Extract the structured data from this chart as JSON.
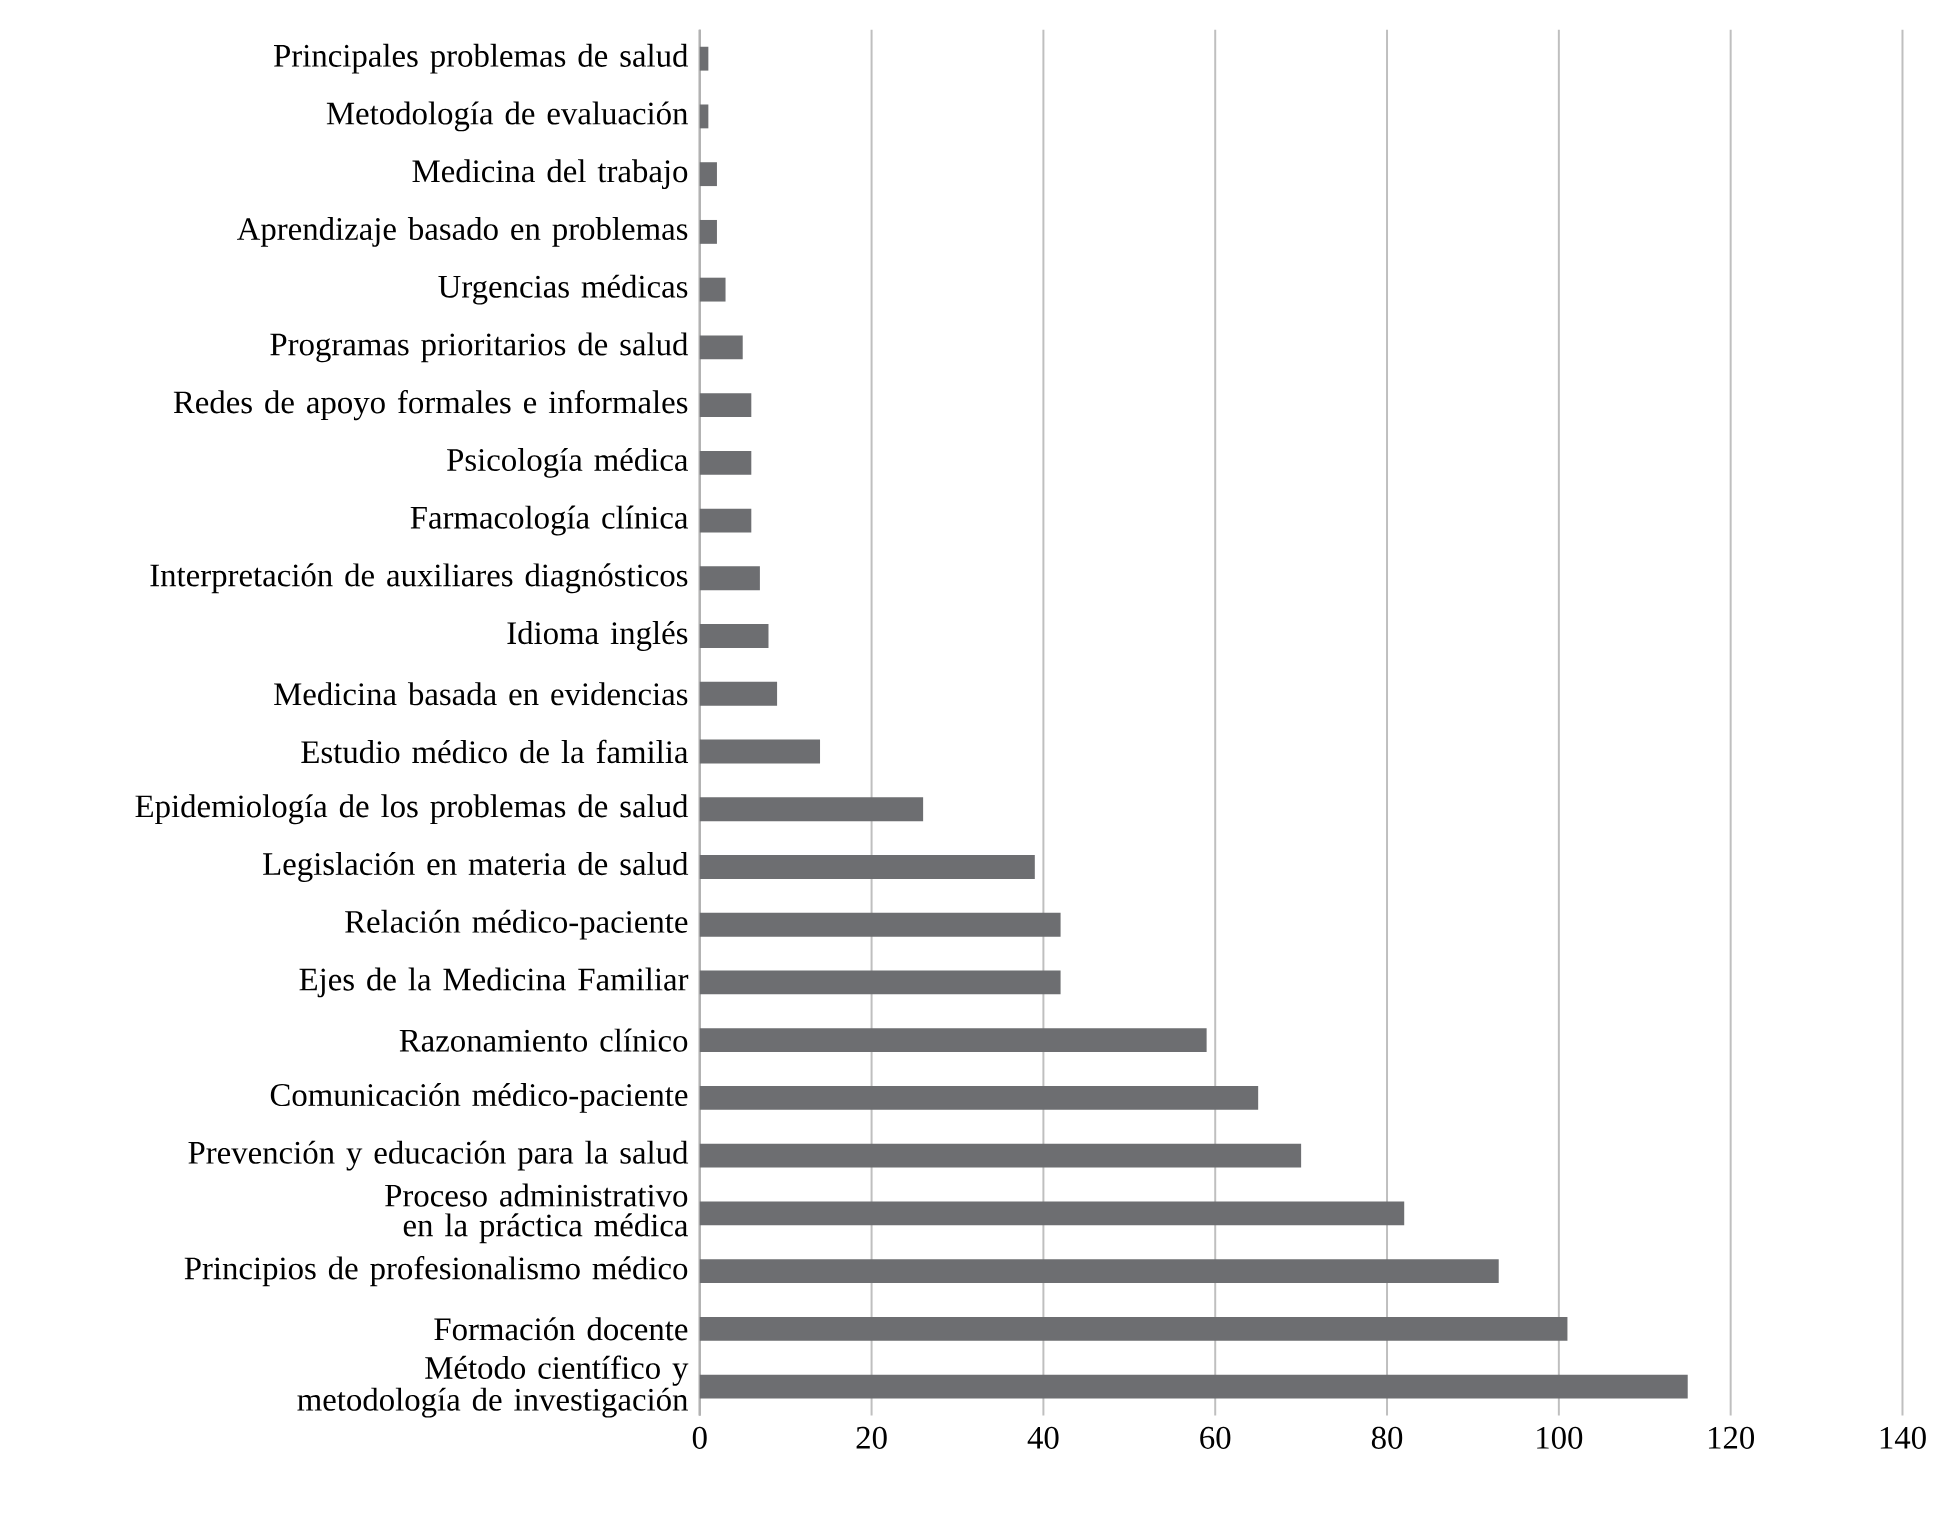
{
  "chart_data": {
    "type": "bar",
    "orientation": "horizontal",
    "categories": [
      "Principales problemas de salud",
      "Metodología de evaluación",
      "Medicina del trabajo",
      "Aprendizaje basado en problemas",
      "Urgencias médicas",
      "Programas prioritarios de salud",
      "Redes de apoyo formales e informales",
      "Psicología médica",
      "Farmacología clínica",
      "Interpretación de auxiliares diagnósticos",
      "Idioma inglés",
      "Medicina basada en evidencias",
      "Estudio médico de la familia",
      "Epidemiología de los problemas de salud",
      "Legislación en materia de salud",
      "Relación médico-paciente",
      "Ejes de la Medicina Familiar",
      "Razonamiento clínico",
      "Comunicación médico-paciente",
      "Prevención y educación para la salud",
      "Proceso administrativo en la práctica médica",
      "Principios de profesionalismo médico",
      "Formación docente",
      "Método científico y metodología de investigación"
    ],
    "values": [
      1,
      1,
      2,
      2,
      3,
      5,
      6,
      6,
      6,
      7,
      8,
      9,
      14,
      26,
      39,
      42,
      42,
      59,
      65,
      70,
      82,
      93,
      101,
      115
    ],
    "color": "#6d6e71",
    "xlim": [
      0,
      140
    ],
    "xticks": [
      0,
      20,
      40,
      60,
      80,
      100,
      120,
      140
    ],
    "grid": "x"
  }
}
